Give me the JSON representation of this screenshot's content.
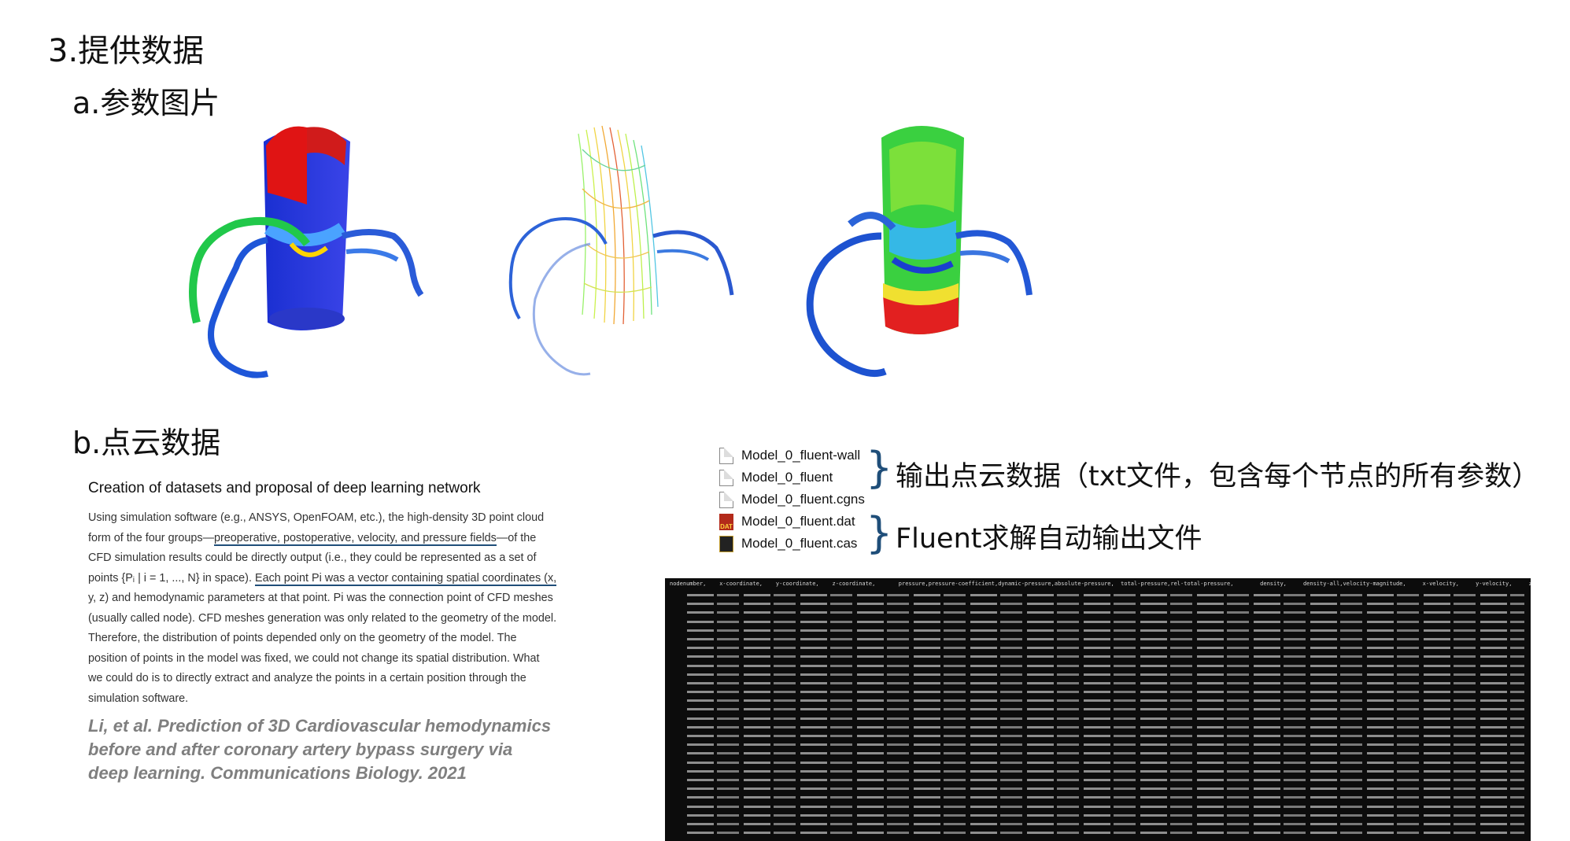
{
  "slide": {
    "title": "3.提供数据",
    "section_a": "a.参数图片",
    "section_b": "b.点云数据"
  },
  "paper": {
    "heading": "Creation of datasets and proposal of deep learning network",
    "line1": "Using simulation software (e.g., ANSYS, OpenFOAM, etc.), the high-density 3D point cloud",
    "line2_pre": "form of the four groups—",
    "line2_ul": "preoperative, postoperative, velocity, and pressure fields",
    "line2_post": "—of the",
    "line3": "CFD simulation results could be directly output (i.e., they could be represented as a set of",
    "line4_pre": "points {Pᵢ | i = 1, ..., N} in space). ",
    "line4_ul": "Each point Pi was a vector containing spatial coordinates (x,",
    "line5": "y, z) and hemodynamic parameters at that point. Pi was the connection point of CFD meshes",
    "line6": "(usually called node). CFD meshes generation was only related to the geometry of the model.",
    "line7": "Therefore, the distribution of points depended only on the geometry of the model. The",
    "line8": "position of points in the model was fixed, we could not change its spatial distribution. What",
    "line9": "we could do is to directly extract and analyze the points in a certain position through the",
    "line10": "simulation software."
  },
  "citation": {
    "line1": "Li, et al. Prediction of 3D Cardiovascular hemodynamics",
    "line2": "before and after coronary artery bypass surgery via",
    "line3": "deep learning. Communications Biology. 2021"
  },
  "files": [
    {
      "name": "Model_0_fluent-wall",
      "icon": "document-icon"
    },
    {
      "name": "Model_0_fluent",
      "icon": "document-icon"
    },
    {
      "name": "Model_0_fluent.cgns",
      "icon": "document-icon"
    },
    {
      "name": "Model_0_fluent.dat",
      "icon": "dat-file-icon"
    },
    {
      "name": "Model_0_fluent.cas",
      "icon": "cas-file-icon"
    }
  ],
  "notes": {
    "output_pointcloud": "输出点云数据（txt文件，包含每个节点的所有参数）",
    "fluent_auto": "Fluent求解自动输出文件"
  },
  "terminal": {
    "header": "nodenumber,    x-coordinate,    y-coordinate,    z-coordinate,       pressure,pressure-coefficient,dynamic-pressure,absolute-pressure,  total-pressure,rel-total-pressure,        density,     density-all,velocity-magnitude,     x-velocity,     y-velocity,     z-velocity,  axial-"
  },
  "colors": {
    "accent": "#1f4e79",
    "citation": "#7f7f7f",
    "terminal_bg": "#0c0c0c"
  }
}
